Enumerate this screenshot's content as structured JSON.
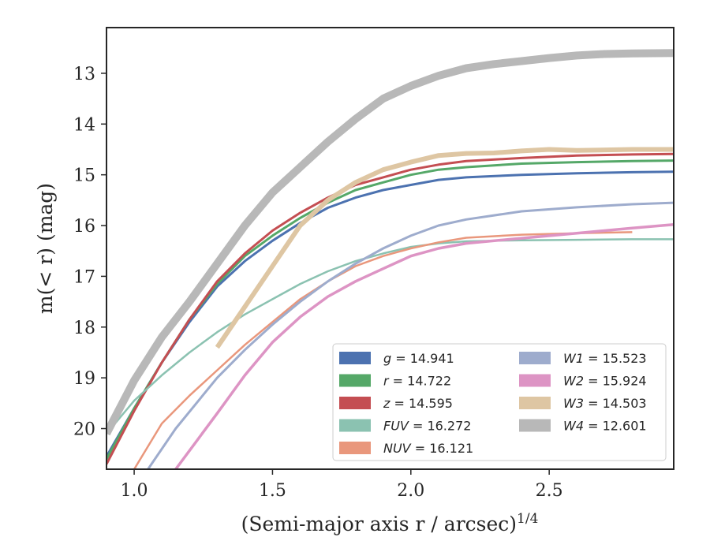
{
  "chart_data": {
    "type": "line",
    "xlabel": "(Semi-major axis r / arcsec)",
    "xlabel_exp": "1/4",
    "ylabel": "m(< r) (mag)",
    "xlim": [
      0.9,
      2.95
    ],
    "ylim": [
      20.8,
      12.1
    ],
    "y_inverted": true,
    "grid": false,
    "legend_placement": "lower-right",
    "xticks": [
      {
        "value": 1.0,
        "label": "1.0"
      },
      {
        "value": 1.5,
        "label": "1.5"
      },
      {
        "value": 2.0,
        "label": "2.0"
      },
      {
        "value": 2.5,
        "label": "2.5"
      }
    ],
    "yticks": [
      {
        "value": 13,
        "label": "13"
      },
      {
        "value": 14,
        "label": "14"
      },
      {
        "value": 15,
        "label": "15"
      },
      {
        "value": 16,
        "label": "16"
      },
      {
        "value": 17,
        "label": "17"
      },
      {
        "value": 18,
        "label": "18"
      },
      {
        "value": 19,
        "label": "19"
      },
      {
        "value": 20,
        "label": "20"
      }
    ],
    "series": [
      {
        "name": "g",
        "label_value": "14.941",
        "color": "#4c72b0",
        "width": 3,
        "x": [
          0.9,
          1.0,
          1.1,
          1.2,
          1.3,
          1.4,
          1.5,
          1.6,
          1.7,
          1.8,
          1.9,
          2.0,
          2.1,
          2.2,
          2.4,
          2.6,
          2.8,
          2.95
        ],
        "y": [
          20.55,
          19.6,
          18.7,
          17.9,
          17.2,
          16.7,
          16.3,
          15.95,
          15.65,
          15.45,
          15.3,
          15.2,
          15.1,
          15.05,
          15.0,
          14.97,
          14.95,
          14.94
        ]
      },
      {
        "name": "r",
        "label_value": "14.722",
        "color": "#55a868",
        "width": 3,
        "x": [
          0.9,
          1.0,
          1.1,
          1.2,
          1.3,
          1.4,
          1.5,
          1.6,
          1.7,
          1.8,
          1.9,
          2.0,
          2.1,
          2.2,
          2.4,
          2.6,
          2.8,
          2.95
        ],
        "y": [
          20.6,
          19.6,
          18.7,
          17.85,
          17.15,
          16.6,
          16.2,
          15.85,
          15.55,
          15.3,
          15.15,
          15.0,
          14.9,
          14.85,
          14.78,
          14.75,
          14.73,
          14.72
        ]
      },
      {
        "name": "z",
        "label_value": "14.595",
        "color": "#c44e52",
        "width": 3,
        "x": [
          0.9,
          1.0,
          1.1,
          1.2,
          1.3,
          1.4,
          1.5,
          1.6,
          1.7,
          1.8,
          1.9,
          2.0,
          2.1,
          2.2,
          2.4,
          2.6,
          2.8,
          2.95
        ],
        "y": [
          20.7,
          19.65,
          18.7,
          17.85,
          17.1,
          16.55,
          16.1,
          15.75,
          15.45,
          15.2,
          15.05,
          14.9,
          14.8,
          14.73,
          14.67,
          14.62,
          14.6,
          14.59
        ]
      },
      {
        "name": "FUV",
        "label_value": "16.272",
        "color": "#8bc2b1",
        "width": 2.5,
        "x": [
          0.9,
          1.0,
          1.1,
          1.2,
          1.3,
          1.4,
          1.5,
          1.6,
          1.7,
          1.8,
          1.9,
          2.0,
          2.1,
          2.2,
          2.4,
          2.6,
          2.8,
          2.95
        ],
        "y": [
          20.1,
          19.45,
          18.95,
          18.5,
          18.1,
          17.75,
          17.45,
          17.15,
          16.9,
          16.7,
          16.55,
          16.42,
          16.35,
          16.31,
          16.29,
          16.28,
          16.27,
          16.27
        ]
      },
      {
        "name": "NUV",
        "label_value": "16.121",
        "color": "#e9977c",
        "width": 2.5,
        "x": [
          1.0,
          1.1,
          1.2,
          1.3,
          1.4,
          1.5,
          1.6,
          1.7,
          1.8,
          1.9,
          2.0,
          2.1,
          2.2,
          2.4,
          2.6,
          2.8
        ],
        "y": [
          20.8,
          19.9,
          19.35,
          18.85,
          18.35,
          17.9,
          17.45,
          17.1,
          16.8,
          16.6,
          16.45,
          16.33,
          16.24,
          16.18,
          16.15,
          16.13
        ]
      },
      {
        "name": "W1",
        "label_value": "15.523",
        "color": "#9eaccd",
        "width": 3,
        "x": [
          1.05,
          1.15,
          1.3,
          1.4,
          1.5,
          1.6,
          1.7,
          1.8,
          1.9,
          2.0,
          2.1,
          2.2,
          2.4,
          2.6,
          2.8,
          2.95
        ],
        "y": [
          20.8,
          20.0,
          19.0,
          18.45,
          17.95,
          17.5,
          17.1,
          16.75,
          16.45,
          16.2,
          16.0,
          15.88,
          15.72,
          15.64,
          15.58,
          15.55
        ]
      },
      {
        "name": "W2",
        "label_value": "15.924",
        "color": "#dd94c4",
        "width": 3.5,
        "x": [
          1.15,
          1.3,
          1.4,
          1.5,
          1.6,
          1.7,
          1.8,
          1.9,
          2.0,
          2.1,
          2.2,
          2.4,
          2.6,
          2.8,
          2.95
        ],
        "y": [
          20.8,
          19.7,
          18.95,
          18.3,
          17.8,
          17.4,
          17.1,
          16.85,
          16.6,
          16.45,
          16.35,
          16.25,
          16.15,
          16.05,
          15.98
        ]
      },
      {
        "name": "W3",
        "label_value": "14.503",
        "color": "#dec6a3",
        "width": 6,
        "x": [
          1.3,
          1.4,
          1.5,
          1.6,
          1.7,
          1.8,
          1.9,
          2.0,
          2.1,
          2.2,
          2.3,
          2.4,
          2.5,
          2.6,
          2.8,
          2.95
        ],
        "y": [
          18.4,
          17.6,
          16.8,
          16.0,
          15.5,
          15.15,
          14.9,
          14.75,
          14.62,
          14.58,
          14.57,
          14.53,
          14.5,
          14.52,
          14.5,
          14.5
        ]
      },
      {
        "name": "W4",
        "label_value": "12.601",
        "color": "#b8b8b8",
        "width": 10,
        "x": [
          0.9,
          1.0,
          1.1,
          1.2,
          1.3,
          1.4,
          1.5,
          1.6,
          1.7,
          1.8,
          1.9,
          2.0,
          2.1,
          2.2,
          2.3,
          2.4,
          2.5,
          2.6,
          2.7,
          2.8,
          2.95
        ],
        "y": [
          20.1,
          19.05,
          18.2,
          17.5,
          16.75,
          16.0,
          15.35,
          14.85,
          14.35,
          13.9,
          13.5,
          13.25,
          13.05,
          12.9,
          12.82,
          12.76,
          12.7,
          12.65,
          12.62,
          12.61,
          12.6
        ]
      }
    ]
  }
}
